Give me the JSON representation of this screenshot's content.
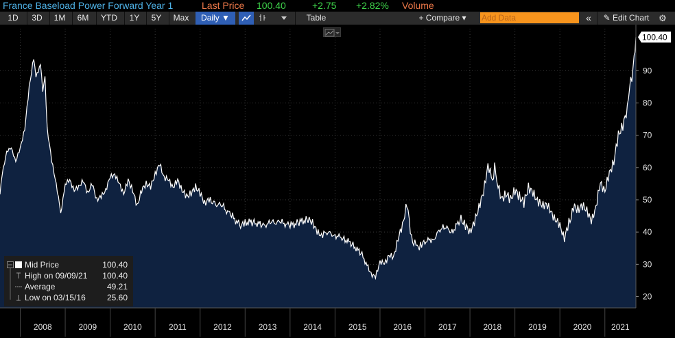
{
  "header": {
    "security_name": "France Baseload Power Forward Year 1",
    "last_price_label": "Last Price",
    "last_price_value": "100.40",
    "change": "+2.75",
    "change_pct": "+2.82%",
    "volume_label": "Volume"
  },
  "toolbar": {
    "ranges": [
      "1D",
      "3D",
      "1M",
      "6M",
      "YTD",
      "1Y",
      "5Y",
      "Max"
    ],
    "frequency": "Daily ▼",
    "table_label": "Table",
    "compare_label": "+ Compare ▾",
    "add_data_placeholder": "Add Data",
    "collapse_label": "«",
    "edit_chart_label": "✎ Edit Chart",
    "settings_label": "⚙"
  },
  "legend": {
    "mid_price_label": "Mid Price",
    "mid_price_value": "100.40",
    "high_label": "High on 09/09/21",
    "high_value": "100.40",
    "average_label": "Average",
    "average_value": "49.21",
    "low_label": "Low on 03/15/16",
    "low_value": "25.60"
  },
  "colors": {
    "background": "#000000",
    "area_fill": "#0f2240",
    "line": "#ffffff",
    "title": "#4fb3e8",
    "last_price_label": "#f07a4a",
    "positive": "#3ed44a",
    "volume": "#f07a4a",
    "add_data": "#f7941d",
    "daily_button": "#2f5fb5"
  },
  "chart_data": {
    "type": "area",
    "series": [
      {
        "name": "Mid Price",
        "x": [
          2007.55,
          2007.6,
          2007.7,
          2007.8,
          2007.9,
          2008.0,
          2008.1,
          2008.2,
          2008.3,
          2008.35,
          2008.45,
          2008.5,
          2008.55,
          2008.6,
          2008.7,
          2008.8,
          2008.9,
          2008.95,
          2009.0,
          2009.1,
          2009.2,
          2009.3,
          2009.4,
          2009.5,
          2009.6,
          2009.7,
          2009.8,
          2009.9,
          2010.0,
          2010.1,
          2010.2,
          2010.3,
          2010.4,
          2010.5,
          2010.6,
          2010.7,
          2010.8,
          2010.9,
          2011.0,
          2011.1,
          2011.2,
          2011.3,
          2011.4,
          2011.5,
          2011.6,
          2011.7,
          2011.8,
          2011.9,
          2012.0,
          2012.1,
          2012.2,
          2012.3,
          2012.5,
          2012.7,
          2012.9,
          2013.0,
          2013.2,
          2013.4,
          2013.6,
          2013.8,
          2014.0,
          2014.2,
          2014.4,
          2014.5,
          2014.6,
          2014.7,
          2014.8,
          2015.0,
          2015.2,
          2015.4,
          2015.6,
          2015.8,
          2015.9,
          2016.0,
          2016.1,
          2016.2,
          2016.3,
          2016.4,
          2016.5,
          2016.6,
          2016.7,
          2016.75,
          2016.8,
          2016.85,
          2016.9,
          2017.0,
          2017.2,
          2017.4,
          2017.6,
          2017.8,
          2017.9,
          2018.0,
          2018.1,
          2018.2,
          2018.3,
          2018.4,
          2018.5,
          2018.55,
          2018.6,
          2018.7,
          2018.8,
          2018.9,
          2019.0,
          2019.1,
          2019.2,
          2019.3,
          2019.4,
          2019.5,
          2019.6,
          2019.7,
          2019.8,
          2019.9,
          2020.0,
          2020.1,
          2020.2,
          2020.25,
          2020.3,
          2020.4,
          2020.5,
          2020.6,
          2020.7,
          2020.8,
          2020.9,
          2021.0,
          2021.1,
          2021.2,
          2021.3,
          2021.4,
          2021.5,
          2021.55,
          2021.6,
          2021.65,
          2021.69
        ],
        "y": [
          52,
          58,
          65,
          66,
          62,
          66,
          72,
          85,
          94,
          88,
          92,
          84,
          88,
          72,
          62,
          55,
          46,
          50,
          55,
          56,
          53,
          54,
          56,
          52,
          55,
          50,
          51,
          53,
          57,
          58,
          55,
          52,
          56,
          53,
          48,
          53,
          55,
          54,
          58,
          61,
          57,
          56,
          54,
          56,
          53,
          51,
          52,
          54,
          52,
          49,
          50,
          49,
          48,
          45,
          42,
          43,
          43,
          42,
          43,
          43,
          42,
          43,
          44,
          43,
          40,
          39,
          40,
          39,
          38,
          36,
          33,
          27,
          26,
          31,
          30,
          33,
          32,
          38,
          42,
          49,
          38,
          36,
          37,
          35,
          36,
          37,
          38,
          42,
          40,
          44,
          42,
          40,
          43,
          48,
          52,
          61,
          56,
          60,
          56,
          50,
          52,
          50,
          53,
          51,
          49,
          54,
          52,
          50,
          48,
          49,
          46,
          44,
          42,
          38,
          43,
          44,
          48,
          47,
          48,
          47,
          43,
          48,
          55,
          53,
          58,
          62,
          70,
          73,
          78,
          85,
          88,
          94,
          100.4
        ]
      }
    ],
    "xlim": [
      2007.55,
      2021.69
    ],
    "ylim": [
      16.5,
      103
    ],
    "y_ticks": [
      20,
      30,
      40,
      50,
      60,
      70,
      80,
      90
    ],
    "x_tick_labels": [
      "2008",
      "2009",
      "2010",
      "2011",
      "2012",
      "2013",
      "2014",
      "2015",
      "2016",
      "2017",
      "2018",
      "2019",
      "2020",
      "2021"
    ],
    "last_value_label": "100.40",
    "grid": true
  }
}
